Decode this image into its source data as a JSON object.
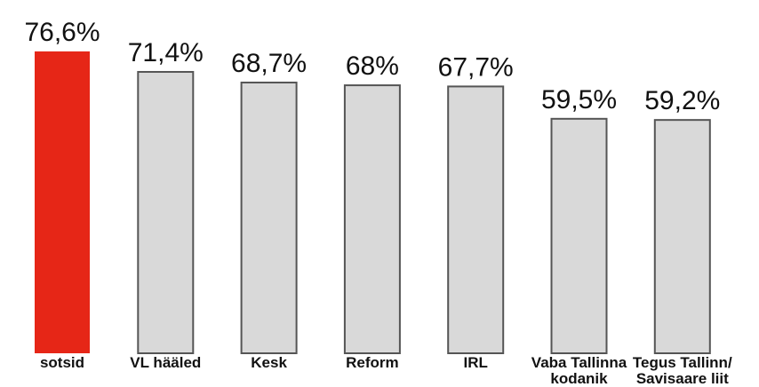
{
  "chart_data": {
    "type": "bar",
    "categories": [
      "sotsid",
      "VL hääled",
      "Kesk",
      "Reform",
      "IRL",
      "Vaba Tallinna kodanik",
      "Tegus Tallinn/ Savisaare liit"
    ],
    "values": [
      76.6,
      71.4,
      68.7,
      68,
      67.7,
      59.5,
      59.2
    ],
    "value_labels": [
      "76,6%",
      "71,4%",
      "68,7%",
      "68%",
      "67,7%",
      "59,5%",
      "59,2%"
    ],
    "colors": [
      "#e62617",
      "#d9d9d9",
      "#d9d9d9",
      "#d9d9d9",
      "#d9d9d9",
      "#d9d9d9",
      "#d9d9d9"
    ]
  }
}
